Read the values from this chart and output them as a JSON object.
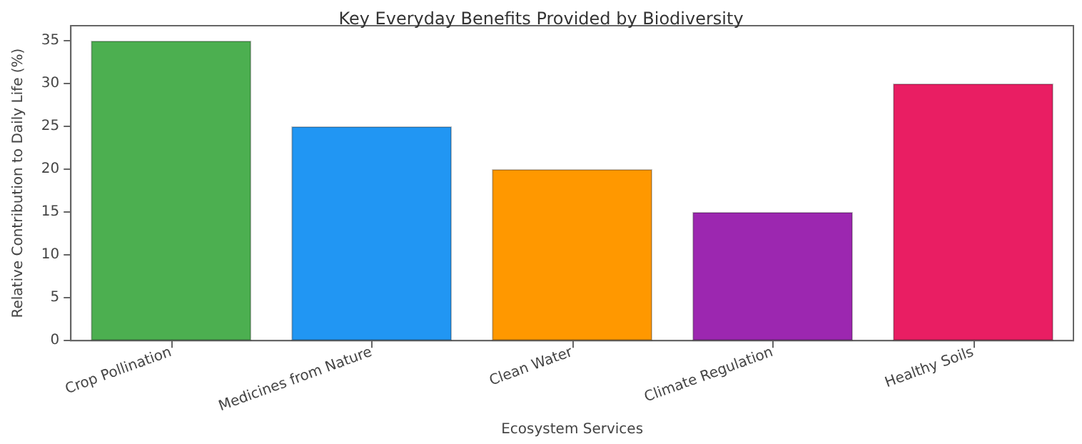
{
  "chart_data": {
    "type": "bar",
    "title": "Key Everyday Benefits Provided by Biodiversity",
    "xlabel": "Ecosystem Services",
    "ylabel": "Relative Contribution to Daily Life (%)",
    "categories": [
      "Crop Pollination",
      "Medicines from Nature",
      "Clean Water",
      "Climate Regulation",
      "Healthy Soils"
    ],
    "values": [
      35,
      25,
      20,
      15,
      30
    ],
    "colors": [
      "#4caf50",
      "#2196f3",
      "#ff9800",
      "#9c27b0",
      "#e91e63"
    ],
    "ylim": [
      0,
      36.75
    ],
    "yticks": [
      0,
      5,
      10,
      15,
      20,
      25,
      30,
      35
    ],
    "grid": false
  }
}
